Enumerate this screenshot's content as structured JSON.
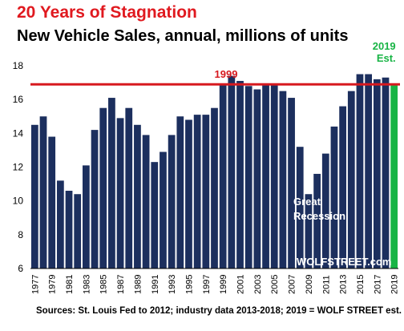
{
  "chart_data": {
    "type": "bar",
    "title": "20 Years of Stagnation",
    "subtitle": "New Vehicle Sales, annual, millions of units",
    "xlabel": "",
    "ylabel": "",
    "ylim": [
      6,
      18
    ],
    "yticks": [
      6,
      8,
      10,
      12,
      14,
      16,
      18
    ],
    "grid": false,
    "categories": [
      "1977",
      "1978",
      "1979",
      "1980",
      "1981",
      "1982",
      "1983",
      "1984",
      "1985",
      "1986",
      "1987",
      "1988",
      "1989",
      "1990",
      "1991",
      "1992",
      "1993",
      "1994",
      "1995",
      "1996",
      "1997",
      "1998",
      "1999",
      "2000",
      "2001",
      "2002",
      "2003",
      "2004",
      "2005",
      "2006",
      "2007",
      "2008",
      "2009",
      "2010",
      "2011",
      "2012",
      "2013",
      "2014",
      "2015",
      "2016",
      "2017",
      "2018",
      "2019"
    ],
    "xtick_labels": [
      "1977",
      "1979",
      "1981",
      "1983",
      "1985",
      "1987",
      "1989",
      "1991",
      "1993",
      "1995",
      "1997",
      "1999",
      "2001",
      "2003",
      "2005",
      "2007",
      "2009",
      "2011",
      "2013",
      "2015",
      "2017",
      "2019"
    ],
    "values": [
      14.5,
      15.0,
      13.8,
      11.2,
      10.6,
      10.4,
      12.1,
      14.2,
      15.5,
      16.1,
      14.9,
      15.5,
      14.5,
      13.9,
      12.3,
      12.9,
      13.9,
      15.0,
      14.8,
      15.1,
      15.1,
      15.5,
      16.9,
      17.4,
      17.1,
      16.8,
      16.6,
      16.9,
      16.9,
      16.5,
      16.1,
      13.2,
      10.4,
      11.6,
      12.8,
      14.4,
      15.6,
      16.5,
      17.5,
      17.5,
      17.2,
      17.3,
      16.9
    ],
    "colors": {
      "bar": "#1c2f5e",
      "estimate_bar": "#18b445",
      "reference_line": "#d7191f",
      "annotation": "#d7191f",
      "estimate_label": "#18b445"
    },
    "reference_line": {
      "value": 16.9,
      "label": "1999"
    },
    "annotations": [
      {
        "text_line1": "Great",
        "text_line2": "Recession"
      },
      {
        "text": "WOLFSTREET.com"
      }
    ],
    "estimate": {
      "category": "2019",
      "label_line1": "2019",
      "label_line2": "Est."
    }
  },
  "source": "Sources: St. Louis Fed to 2012; industry data 2013-2018; 2019 = WOLF STREET est."
}
